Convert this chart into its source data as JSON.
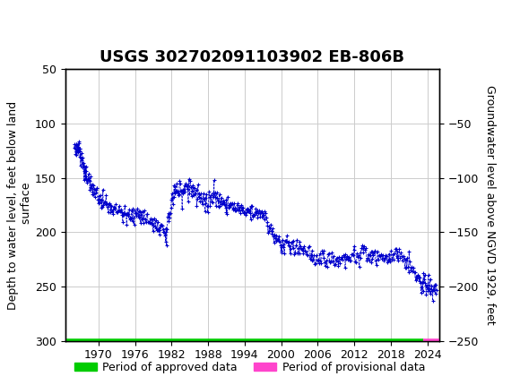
{
  "title": "USGS 302702091103902 EB-806B",
  "left_ylabel": "Depth to water level, feet below land\n surface",
  "right_ylabel": "Groundwater level above NGVD 1929, feet",
  "ylim_left": [
    50,
    300
  ],
  "ylim_right": [
    -250,
    0
  ],
  "yticks_left": [
    50,
    100,
    150,
    200,
    250,
    300
  ],
  "yticks_right": [
    -250,
    -200,
    -150,
    -100,
    -50
  ],
  "xlim": [
    1964.5,
    2026
  ],
  "xticks": [
    1970,
    1976,
    1982,
    1988,
    1994,
    2000,
    2006,
    2012,
    2018,
    2024
  ],
  "header_color": "#1a6b3c",
  "data_color": "#0000cc",
  "approved_color": "#00cc00",
  "provisional_color": "#ff44cc",
  "background_color": "#ffffff",
  "grid_color": "#cccccc",
  "title_fontsize": 13,
  "axis_label_fontsize": 9,
  "tick_fontsize": 9,
  "legend_fontsize": 9,
  "marker": "+",
  "markersize": 4,
  "linewidth": 0.6,
  "approved_line_x": [
    1964.5,
    2023.3
  ],
  "approved_line_y": [
    300,
    300
  ],
  "provisional_line_x": [
    2023.3,
    2026.0
  ],
  "provisional_line_y": [
    300,
    300
  ]
}
